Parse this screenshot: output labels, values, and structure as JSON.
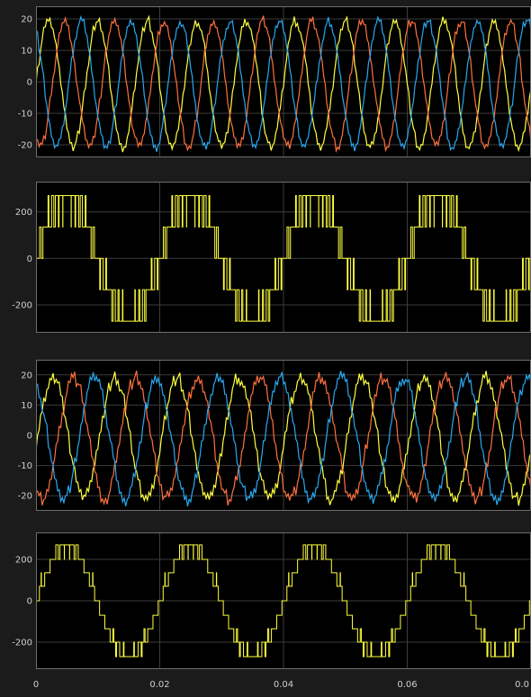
{
  "window": {
    "background": "#1b1b1b",
    "axes_background": "#000000",
    "grid_color": "#3c3c3c",
    "border_color": "#6e6e6e",
    "text_color": "#cfcfcf"
  },
  "shared_x_ticks": [
    "0",
    "0.02",
    "0.04",
    "0.06",
    "0.0"
  ],
  "chart_data": [
    {
      "type": "line",
      "x": {
        "start": 0,
        "end": 0.08,
        "step": 0.00025
      },
      "xlim": [
        0,
        0.08
      ],
      "ylim": [
        -24,
        24
      ],
      "yticks": [
        20,
        10,
        0,
        -10,
        -20
      ],
      "grid": true,
      "series": [
        {
          "color": "#ffff40",
          "waveform": "sine",
          "amplitude": 20,
          "frequency_hz": 125,
          "phase_deg": 0,
          "ripple": 2.2
        },
        {
          "color": "#ff7040",
          "waveform": "sine",
          "amplitude": 20,
          "frequency_hz": 125,
          "phase_deg": -120,
          "ripple": 2.2
        },
        {
          "color": "#28a8f0",
          "waveform": "sine",
          "amplitude": 20,
          "frequency_hz": 125,
          "phase_deg": 120,
          "ripple": 2.2
        }
      ]
    },
    {
      "type": "line",
      "x": {
        "start": 0,
        "end": 0.08,
        "step": 2.5e-05
      },
      "xlim": [
        0,
        0.08
      ],
      "ylim": [
        -320,
        330
      ],
      "yticks": [
        200,
        0,
        -200
      ],
      "grid": true,
      "series": [
        {
          "color": "#ffff40",
          "waveform": "pwm-line-voltage",
          "frequency_hz": 50,
          "levels": [
            -270,
            -135,
            0,
            135,
            270
          ],
          "carrier_hz": 1500,
          "peak": 270
        }
      ]
    },
    {
      "type": "line",
      "x": {
        "start": 0,
        "end": 0.08,
        "step": 0.00025
      },
      "xlim": [
        0,
        0.08
      ],
      "ylim": [
        -25,
        25
      ],
      "yticks": [
        20,
        10,
        0,
        -10,
        -20
      ],
      "grid": true,
      "series": [
        {
          "color": "#ffff40",
          "waveform": "sine",
          "amplitude": 20,
          "frequency_hz": 100,
          "phase_deg": -10,
          "ripple": 3.2
        },
        {
          "color": "#ff7040",
          "waveform": "sine",
          "amplitude": 20,
          "frequency_hz": 100,
          "phase_deg": -130,
          "ripple": 3.2
        },
        {
          "color": "#28a8f0",
          "waveform": "sine",
          "amplitude": 20,
          "frequency_hz": 100,
          "phase_deg": 110,
          "ripple": 3.2
        }
      ]
    },
    {
      "type": "line",
      "x": {
        "start": 0,
        "end": 0.08,
        "step": 2.5e-05
      },
      "xlim": [
        0,
        0.08
      ],
      "ylim": [
        -330,
        330
      ],
      "yticks": [
        200,
        0,
        -200
      ],
      "grid": true,
      "series": [
        {
          "color": "#ffff40",
          "waveform": "pwm-line-voltage",
          "frequency_hz": 50,
          "levels": [
            -270,
            -200,
            -135,
            -70,
            0,
            70,
            135,
            200,
            270
          ],
          "carrier_hz": 1200,
          "peak": 270
        }
      ]
    }
  ]
}
